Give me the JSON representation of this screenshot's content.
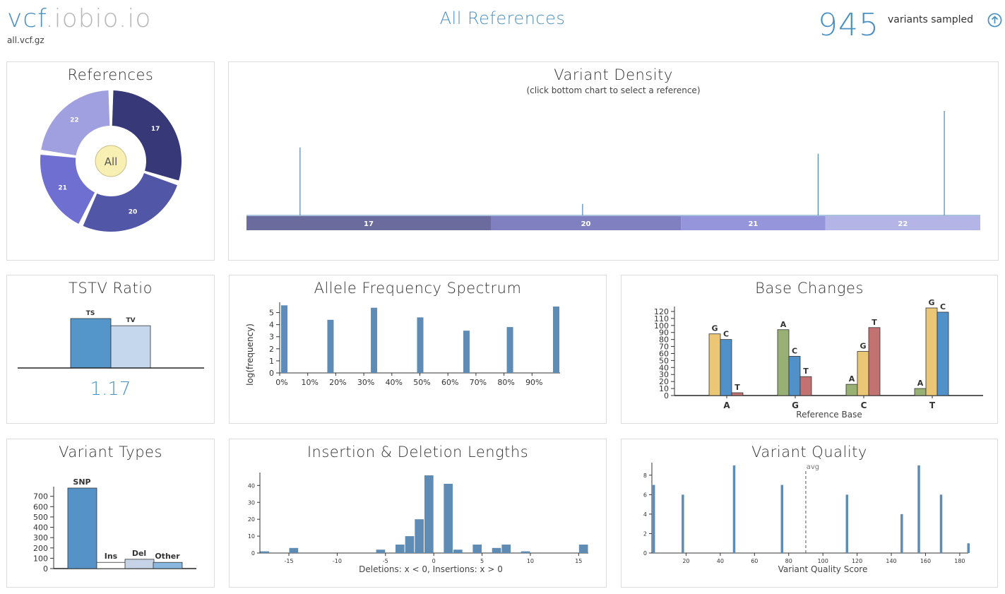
{
  "header": {
    "brand_vcf": "vcf",
    "brand_rest": ".iobio.io",
    "filename": "all.vcf.gz",
    "title": "All References",
    "variant_count": "945",
    "count_label": "variants sampled"
  },
  "references": {
    "title": "References",
    "center_label": "All",
    "slices": [
      {
        "label": "17",
        "value": 30,
        "color": "#363877"
      },
      {
        "label": "20",
        "value": 27,
        "color": "#5156a6"
      },
      {
        "label": "21",
        "value": 20,
        "color": "#6f6fd1"
      },
      {
        "label": "22",
        "value": 23,
        "color": "#a09fe0"
      }
    ]
  },
  "density": {
    "title": "Variant Density",
    "subtitle": "(click bottom chart to select a reference)",
    "segments": [
      {
        "label": "17",
        "fraction": 0.333,
        "color": "#6b6b9e"
      },
      {
        "label": "20",
        "fraction": 0.259,
        "color": "#8080c0"
      },
      {
        "label": "21",
        "fraction": 0.197,
        "color": "#9595dc"
      },
      {
        "label": "22",
        "fraction": 0.211,
        "color": "#b4b4e6"
      }
    ],
    "peaks": [
      {
        "pos": 0.073,
        "height": 0.65
      },
      {
        "pos": 0.458,
        "height": 0.11
      },
      {
        "pos": 0.779,
        "height": 0.59
      },
      {
        "pos": 0.951,
        "height": 1.0
      }
    ]
  },
  "tstv": {
    "title": "TSTV Ratio",
    "ts_label": "TS",
    "tv_label": "TV",
    "value": "1.17",
    "ts_height": 1.0,
    "tv_height": 0.855
  },
  "chart_data": [
    {
      "type": "bar",
      "title": "Allele Frequency Spectrum",
      "ylabel": "log(frequency)",
      "x_ticks": [
        "0%",
        "10%",
        "20%",
        "30%",
        "40%",
        "50%",
        "60%",
        "70%",
        "80%",
        "90%"
      ],
      "ylim": [
        0,
        5.5
      ],
      "y_ticks": [
        0,
        1,
        2,
        3,
        4,
        5
      ],
      "bars": [
        {
          "x": 0.0,
          "value": 5.6
        },
        {
          "x": 0.17,
          "value": 4.4
        },
        {
          "x": 0.33,
          "value": 5.4
        },
        {
          "x": 0.5,
          "value": 4.6
        },
        {
          "x": 0.67,
          "value": 3.5
        },
        {
          "x": 0.83,
          "value": 3.8
        },
        {
          "x": 1.0,
          "value": 5.5
        }
      ]
    },
    {
      "type": "bar",
      "title": "Base Changes",
      "xlabel": "Reference Base",
      "ylim": [
        0,
        125
      ],
      "y_ticks": [
        0,
        10,
        20,
        30,
        40,
        50,
        60,
        70,
        80,
        90,
        100,
        110,
        120
      ],
      "categories": [
        "A",
        "G",
        "C",
        "T"
      ],
      "groups": [
        [
          {
            "base": "G",
            "value": 88,
            "color": "#eac675"
          },
          {
            "base": "C",
            "value": 80,
            "color": "#4f91c8"
          },
          {
            "base": "T",
            "value": 4,
            "color": "#c37272"
          }
        ],
        [
          {
            "base": "A",
            "value": 94,
            "color": "#99b075"
          },
          {
            "base": "C",
            "value": 56,
            "color": "#4f91c8"
          },
          {
            "base": "T",
            "value": 27,
            "color": "#c37272"
          }
        ],
        [
          {
            "base": "A",
            "value": 16,
            "color": "#99b075"
          },
          {
            "base": "G",
            "value": 63,
            "color": "#eac675"
          },
          {
            "base": "T",
            "value": 97,
            "color": "#c37272"
          }
        ],
        [
          {
            "base": "A",
            "value": 10,
            "color": "#99b075"
          },
          {
            "base": "G",
            "value": 125,
            "color": "#eac675"
          },
          {
            "base": "C",
            "value": 119,
            "color": "#4f91c8"
          }
        ]
      ]
    },
    {
      "type": "bar",
      "title": "Variant Types",
      "ylim": [
        0,
        780
      ],
      "y_ticks": [
        0,
        100,
        200,
        300,
        400,
        500,
        600,
        700
      ],
      "categories": [
        "SNP",
        "Ins",
        "Del",
        "Other"
      ],
      "values": [
        780,
        60,
        90,
        60
      ],
      "colors": [
        "#5592c8",
        "#ffffff",
        "#c6d3e6",
        "#88b8df"
      ]
    },
    {
      "type": "bar",
      "title": "Insertion & Deletion Lengths",
      "xlabel": "Deletions: x < 0, Insertions: x > 0",
      "xlim": [
        -18,
        16
      ],
      "x_ticks": [
        -15,
        -10,
        -5,
        0,
        5,
        10,
        15
      ],
      "ylim": [
        0,
        46
      ],
      "y_ticks": [
        0,
        10,
        20,
        30,
        40
      ],
      "bars": [
        {
          "x": -17.5,
          "value": 1
        },
        {
          "x": -14.5,
          "value": 3
        },
        {
          "x": -5.5,
          "value": 2
        },
        {
          "x": -3.5,
          "value": 5
        },
        {
          "x": -2.5,
          "value": 10
        },
        {
          "x": -1.5,
          "value": 20
        },
        {
          "x": -0.5,
          "value": 46
        },
        {
          "x": 1.5,
          "value": 41
        },
        {
          "x": 2.5,
          "value": 2
        },
        {
          "x": 4.5,
          "value": 5
        },
        {
          "x": 6.5,
          "value": 3
        },
        {
          "x": 7.5,
          "value": 5
        },
        {
          "x": 9.5,
          "value": 1
        },
        {
          "x": 15.5,
          "value": 5
        }
      ]
    },
    {
      "type": "bar",
      "title": "Variant Quality",
      "xlabel": "Variant Quality Score",
      "avg_label": "avg",
      "avg": 90,
      "xlim": [
        0,
        185
      ],
      "x_ticks": [
        20,
        40,
        60,
        80,
        100,
        120,
        140,
        160,
        180
      ],
      "ylim": [
        0,
        9
      ],
      "y_ticks": [
        0,
        2,
        4,
        6,
        8
      ],
      "bars": [
        {
          "x": 1,
          "value": 7
        },
        {
          "x": 18,
          "value": 6
        },
        {
          "x": 48,
          "value": 9
        },
        {
          "x": 76,
          "value": 7
        },
        {
          "x": 114,
          "value": 6
        },
        {
          "x": 146,
          "value": 4
        },
        {
          "x": 156,
          "value": 9
        },
        {
          "x": 169,
          "value": 6
        },
        {
          "x": 185,
          "value": 1
        }
      ]
    }
  ]
}
